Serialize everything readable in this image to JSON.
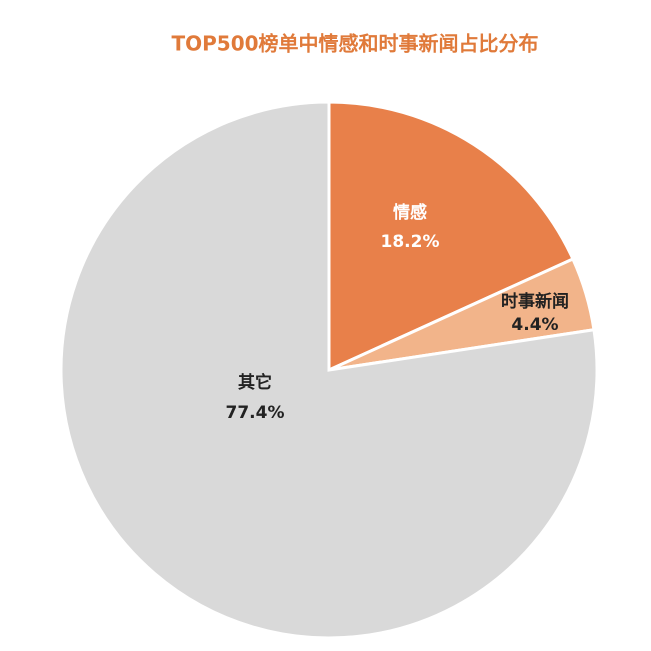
{
  "chart_data": {
    "type": "pie",
    "title": "TOP500榜单中情感和时事新闻占比分布",
    "categories": [
      "情感",
      "时事新闻",
      "其它"
    ],
    "values": [
      18.2,
      4.4,
      77.4
    ],
    "value_labels": [
      "18.2%",
      "4.4%",
      "77.4%"
    ],
    "colors": [
      "#E8804A",
      "#F2B48A",
      "#D9D9D9"
    ]
  }
}
